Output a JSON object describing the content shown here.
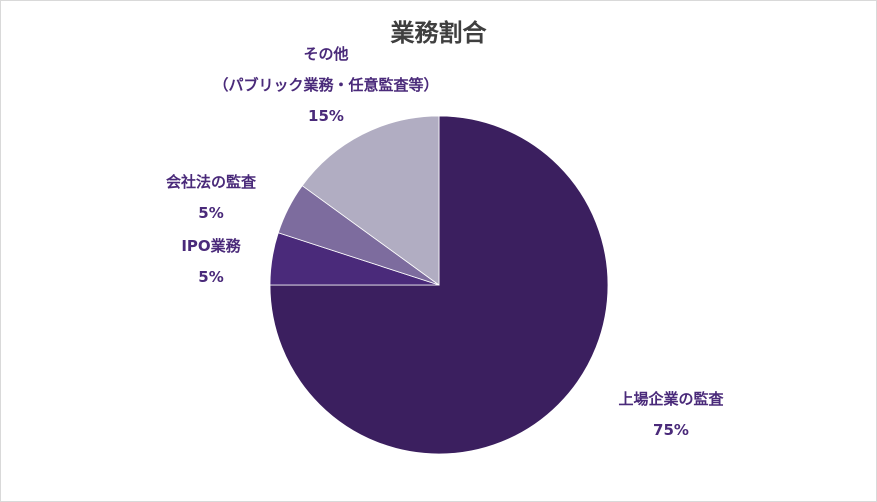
{
  "chart_data": {
    "type": "pie",
    "title": "業務割合",
    "slices": [
      {
        "label": "上場企業の監査",
        "value": 75,
        "value_label": "75%",
        "color": "#3b1f5f"
      },
      {
        "label": "IPO業務",
        "value": 5,
        "value_label": "5%",
        "color": "#4a2a7a"
      },
      {
        "label": "会社法の監査",
        "value": 5,
        "value_label": "5%",
        "color": "#7d6c9e"
      },
      {
        "label": "その他",
        "sublabel": "（パブリック業務・任意監査等）",
        "value": 15,
        "value_label": "15%",
        "color": "#b1adc2"
      }
    ],
    "start_angle_deg": 0,
    "direction": "clockwise",
    "legend": "none",
    "label_color": "#4a2a7a"
  }
}
